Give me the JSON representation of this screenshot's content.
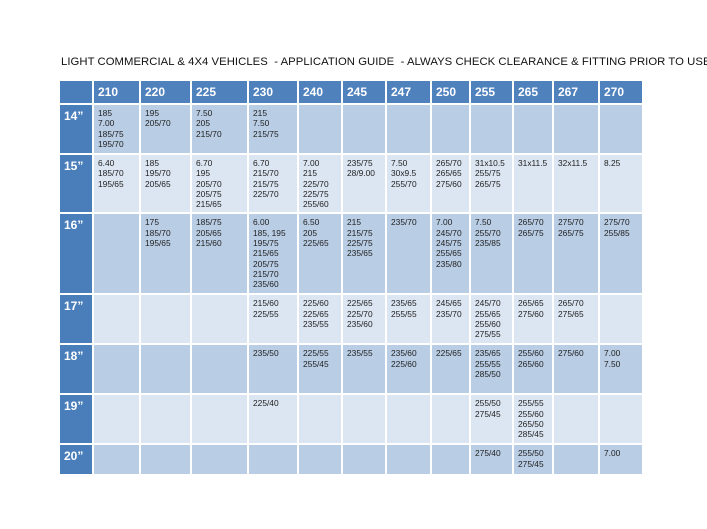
{
  "title": "LIGHT COMMERCIAL & 4X4 VEHICLES  - APPLICATION GUIDE  - ALWAYS CHECK CLEARANCE & FITTING PRIOR TO USE",
  "colors": {
    "header": "#4f81bd",
    "row_dark": "#b9cde5",
    "row_light": "#dce6f2"
  },
  "columns": [
    "210",
    "220",
    "225",
    "230",
    "240",
    "245",
    "247",
    "250",
    "255",
    "265",
    "267",
    "270"
  ],
  "rows": [
    {
      "rim": "14”",
      "cells": [
        [
          "185",
          "7.00",
          "185/75",
          "195/70"
        ],
        [
          "195",
          "205/70"
        ],
        [
          "7.50",
          "205",
          "215/70"
        ],
        [
          "215",
          "7.50",
          "215/75"
        ],
        [],
        [],
        [],
        [],
        [],
        [],
        [],
        []
      ]
    },
    {
      "rim": "15”",
      "cells": [
        [
          "6.40",
          "185/70",
          "195/65"
        ],
        [
          "185",
          "195/70",
          "205/65"
        ],
        [
          "6.70",
          "195",
          "205/70",
          "205/75",
          "215/65"
        ],
        [
          "6.70",
          "215/70",
          "215/75",
          "225/70"
        ],
        [
          "7.00",
          "215",
          "225/70",
          "225/75",
          "255/60"
        ],
        [
          "235/75",
          "28/9.00"
        ],
        [
          "7.50",
          "30x9.5",
          "255/70"
        ],
        [
          "265/70",
          "265/65",
          "275/60"
        ],
        [
          "31x10.5",
          "255/75",
          "265/75"
        ],
        [
          "31x11.5"
        ],
        [
          "32x11.5"
        ],
        [
          "8.25"
        ]
      ]
    },
    {
      "rim": "16”",
      "cells": [
        [],
        [
          "175",
          "185/70",
          "195/65"
        ],
        [
          "185/75",
          "205/65",
          "215/60"
        ],
        [
          "6.00",
          "185, 195",
          "195/75",
          "215/65",
          "205/75",
          "215/70",
          "235/60"
        ],
        [
          "6.50",
          "205",
          "225/65"
        ],
        [
          "215",
          "215/75",
          "225/75",
          "235/65"
        ],
        [
          "235/70"
        ],
        [
          "7.00",
          "245/70",
          "245/75",
          "255/65",
          "235/80"
        ],
        [
          "7.50",
          "255/70",
          "235/85"
        ],
        [
          "265/70",
          "265/75"
        ],
        [
          "275/70",
          "265/75"
        ],
        [
          "275/70",
          "255/85"
        ]
      ]
    },
    {
      "rim": "17”",
      "cells": [
        [],
        [],
        [],
        [
          "215/60",
          "225/55"
        ],
        [
          "225/60",
          "225/65",
          "235/55"
        ],
        [
          "225/65",
          "225/70",
          "235/60"
        ],
        [
          "235/65",
          "255/55"
        ],
        [
          "245/65",
          "235/70"
        ],
        [
          "245/70",
          "255/65",
          "255/60",
          "275/55"
        ],
        [
          "265/65",
          "275/60"
        ],
        [
          "265/70",
          "275/65"
        ],
        []
      ]
    },
    {
      "rim": "18”",
      "cells": [
        [],
        [],
        [],
        [
          "235/50"
        ],
        [
          "225/55",
          "255/45"
        ],
        [
          "235/55"
        ],
        [
          "235/60",
          "225/60"
        ],
        [
          "225/65"
        ],
        [
          "235/65",
          "255/55",
          "285/50"
        ],
        [
          "255/60",
          "265/60"
        ],
        [
          "275/60"
        ],
        [
          "7.00",
          "7.50"
        ]
      ]
    },
    {
      "rim": "19”",
      "cells": [
        [],
        [],
        [],
        [
          "225/40"
        ],
        [],
        [],
        [],
        [],
        [
          "255/50",
          "275/45"
        ],
        [
          "255/55",
          "255/60",
          "265/50",
          "285/45"
        ],
        [],
        []
      ]
    },
    {
      "rim": "20”",
      "cells": [
        [],
        [],
        [],
        [],
        [],
        [],
        [],
        [],
        [
          "275/40"
        ],
        [
          "255/50",
          "275/45"
        ],
        [],
        [
          "7.00"
        ]
      ]
    }
  ]
}
